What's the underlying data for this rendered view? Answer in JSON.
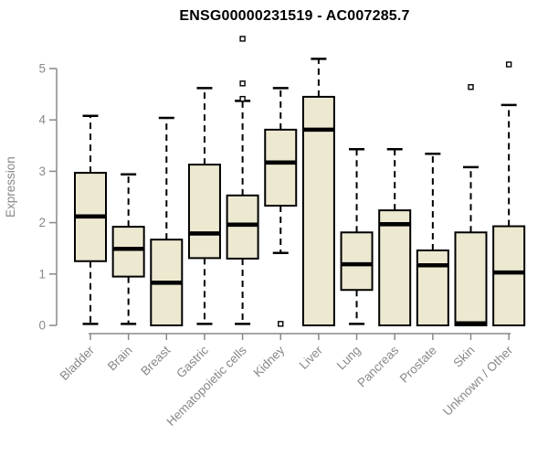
{
  "chart_data": {
    "type": "boxplot",
    "title": "ENSG00000231519 - AC007285.7",
    "ylabel": "Expression",
    "xlabel": "",
    "ylim": [
      0,
      5
    ],
    "yticks": [
      "0",
      "1",
      "2",
      "3",
      "4",
      "5"
    ],
    "grid": false,
    "legend": "none",
    "categories": [
      "Bladder",
      "Brain",
      "Breast",
      "Gastric",
      "Hematopoietic cells",
      "Kidney",
      "Liver",
      "Lung",
      "Pancreas",
      "Prostate",
      "Skin",
      "Unknown / Other"
    ],
    "boxes": [
      {
        "category": "Bladder",
        "whisker_low": 0.03,
        "q1": 1.25,
        "median": 2.12,
        "q3": 2.97,
        "whisker_high": 4.08,
        "outliers": []
      },
      {
        "category": "Brain",
        "whisker_low": 0.03,
        "q1": 0.95,
        "median": 1.49,
        "q3": 1.92,
        "whisker_high": 2.94,
        "outliers": []
      },
      {
        "category": "Breast",
        "whisker_low": 0.0,
        "q1": 0.0,
        "median": 0.83,
        "q3": 1.67,
        "whisker_high": 4.04,
        "outliers": []
      },
      {
        "category": "Gastric",
        "whisker_low": 0.03,
        "q1": 1.31,
        "median": 1.79,
        "q3": 3.13,
        "whisker_high": 4.62,
        "outliers": []
      },
      {
        "category": "Hematopoietic cells",
        "whisker_low": 0.03,
        "q1": 1.3,
        "median": 1.96,
        "q3": 2.53,
        "whisker_high": 4.37,
        "outliers": [
          4.41,
          4.71,
          5.58
        ]
      },
      {
        "category": "Kidney",
        "whisker_low": 1.41,
        "q1": 2.33,
        "median": 3.17,
        "q3": 3.81,
        "whisker_high": 4.62,
        "outliers": [
          0.03
        ]
      },
      {
        "category": "Liver",
        "whisker_low": 0.0,
        "q1": 0.0,
        "median": 3.81,
        "q3": 4.45,
        "whisker_high": 5.19,
        "outliers": []
      },
      {
        "category": "Lung",
        "whisker_low": 0.03,
        "q1": 0.69,
        "median": 1.19,
        "q3": 1.81,
        "whisker_high": 3.43,
        "outliers": []
      },
      {
        "category": "Pancreas",
        "whisker_low": 0.0,
        "q1": 0.0,
        "median": 1.97,
        "q3": 2.24,
        "whisker_high": 3.43,
        "outliers": []
      },
      {
        "category": "Prostate",
        "whisker_low": 0.0,
        "q1": 0.0,
        "median": 1.17,
        "q3": 1.46,
        "whisker_high": 3.34,
        "outliers": []
      },
      {
        "category": "Skin",
        "whisker_low": 0.0,
        "q1": 0.0,
        "median": 0.04,
        "q3": 1.81,
        "whisker_high": 3.08,
        "outliers": [
          4.64
        ]
      },
      {
        "category": "Unknown / Other",
        "whisker_low": 0.0,
        "q1": 0.0,
        "median": 1.03,
        "q3": 1.93,
        "whisker_high": 4.29,
        "outliers": [
          5.08
        ]
      }
    ],
    "colors": {
      "box_fill": "#EDE8D0",
      "box_border": "#000000",
      "median": "#000000",
      "whisker": "#000000",
      "axis": "#888888",
      "tick_text": "#888888",
      "title_text": "#000000",
      "background": "#FFFFFF"
    }
  }
}
